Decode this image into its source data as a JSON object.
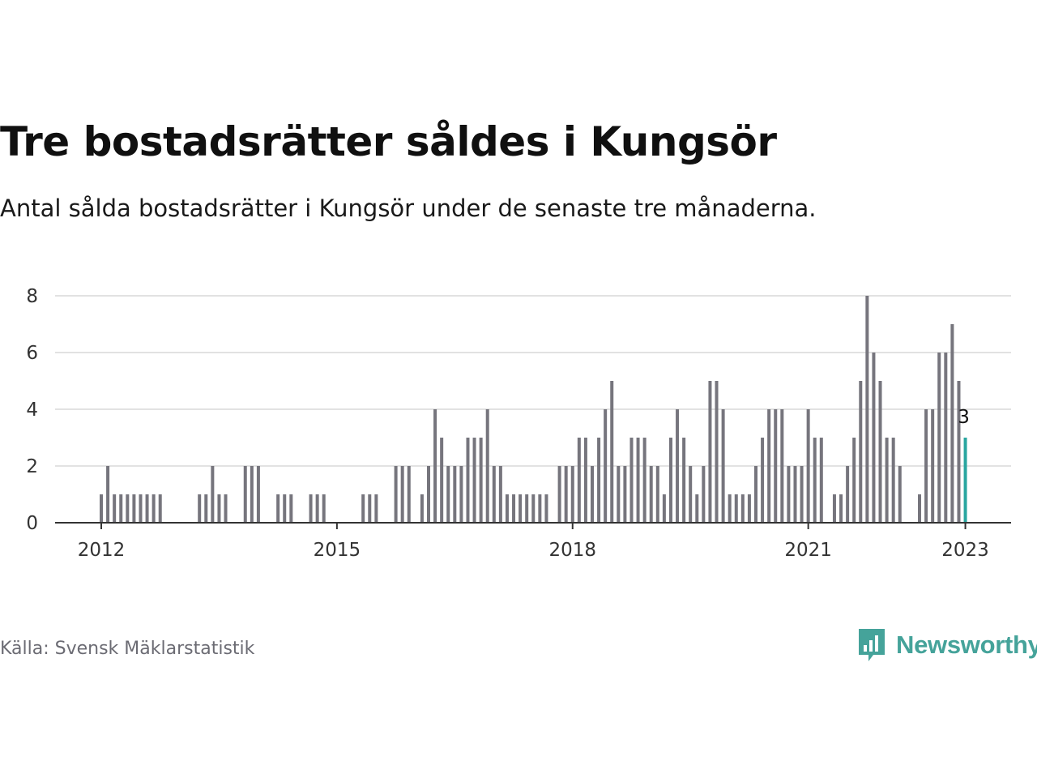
{
  "title": "Tre bostadsrätter såldes i Kungsör",
  "subtitle": "Antal sålda bostadsrätter i Kungsör under de senaste tre månaderna.",
  "source": "Källa: Svensk Mäklarstatistik",
  "brand": "Newsworthy",
  "colors": {
    "bar": "#76757d",
    "highlight": "#2aa6a0",
    "grid": "#e2e2e2",
    "axis": "#333333",
    "brand": "#45a39a"
  },
  "chart_data": {
    "type": "bar",
    "x_unit": "month",
    "x_start": "2012-01",
    "x_end": "2023-01",
    "xtick_labels": [
      "2012",
      "2015",
      "2018",
      "2021",
      "2023"
    ],
    "y_ticks": [
      0,
      2,
      4,
      6,
      8
    ],
    "ylim": [
      0,
      8
    ],
    "grid": true,
    "annotation": {
      "label": "3",
      "x": "2023-01",
      "y": 3
    },
    "highlight_last": true,
    "values": [
      1,
      2,
      1,
      1,
      1,
      1,
      1,
      1,
      1,
      1,
      0,
      0,
      0,
      0,
      0,
      1,
      1,
      2,
      1,
      1,
      0,
      0,
      2,
      2,
      2,
      0,
      0,
      1,
      1,
      1,
      0,
      0,
      1,
      1,
      1,
      0,
      0,
      0,
      0,
      0,
      1,
      1,
      1,
      0,
      0,
      2,
      2,
      2,
      0,
      1,
      2,
      4,
      3,
      2,
      2,
      2,
      3,
      3,
      3,
      4,
      2,
      2,
      1,
      1,
      1,
      1,
      1,
      1,
      1,
      0,
      2,
      2,
      2,
      3,
      3,
      2,
      3,
      4,
      5,
      2,
      2,
      3,
      3,
      3,
      2,
      2,
      1,
      3,
      4,
      3,
      2,
      1,
      2,
      5,
      5,
      4,
      1,
      1,
      1,
      1,
      2,
      3,
      4,
      4,
      4,
      2,
      2,
      2,
      4,
      3,
      3,
      0,
      1,
      1,
      2,
      3,
      5,
      8,
      6,
      5,
      3,
      3,
      2,
      0,
      0,
      1,
      4,
      4,
      6,
      6,
      7,
      5,
      3
    ]
  }
}
